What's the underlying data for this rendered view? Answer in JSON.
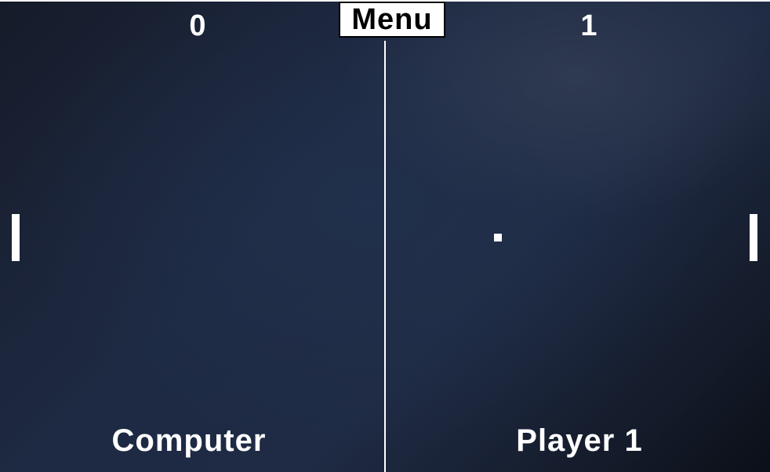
{
  "menu": {
    "label": "Menu"
  },
  "scores": {
    "left": "0",
    "right": "1"
  },
  "players": {
    "left": "Computer",
    "right": "Player 1"
  },
  "colors": {
    "background": "#1e2a43",
    "foreground": "#ffffff",
    "menu_background": "#ffffff",
    "menu_text": "#000000"
  }
}
